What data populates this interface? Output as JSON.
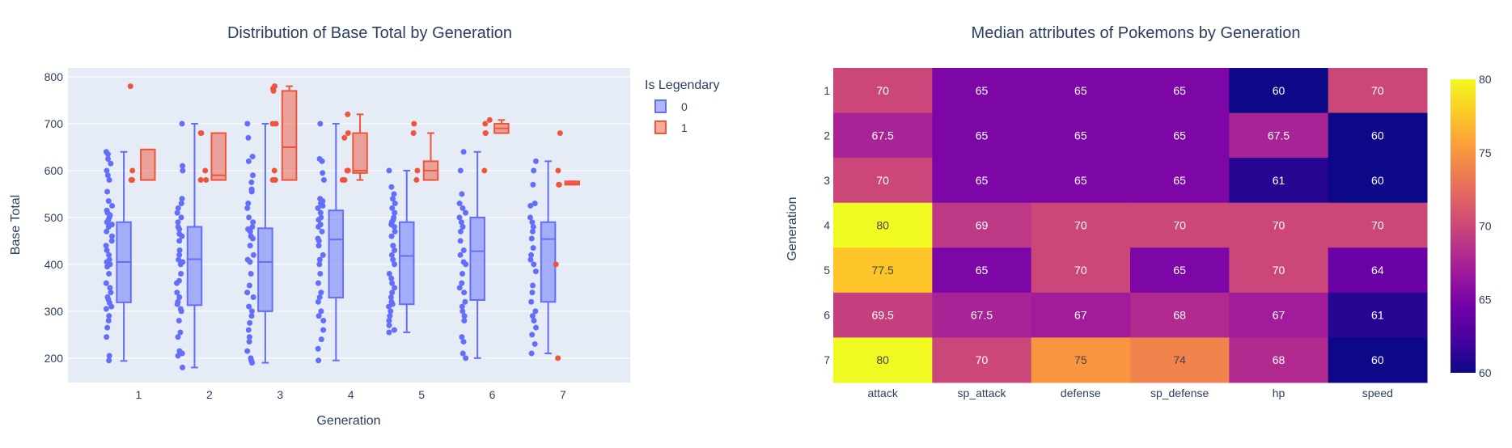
{
  "chart_data": [
    {
      "type": "box",
      "title": "Distribution of Base Total by Generation",
      "xlabel": "Generation",
      "ylabel": "Base Total",
      "categories": [
        "1",
        "2",
        "3",
        "4",
        "5",
        "6",
        "7"
      ],
      "yticks": [
        200,
        300,
        400,
        500,
        600,
        700,
        800
      ],
      "ylim": [
        148,
        819
      ],
      "grid": true,
      "legend": {
        "title": "Is Legendary",
        "placement": "right",
        "entries": [
          "0",
          "1"
        ]
      },
      "series": [
        {
          "name": "0",
          "color": "#636efa",
          "boxes": [
            {
              "min": 194,
              "q1": 319,
              "median": 405,
              "q3": 490,
              "max": 640
            },
            {
              "min": 180,
              "q1": 313,
              "median": 411,
              "q3": 480,
              "max": 700
            },
            {
              "min": 190,
              "q1": 300,
              "median": 405,
              "q3": 477,
              "max": 700
            },
            {
              "min": 195,
              "q1": 329,
              "median": 453,
              "q3": 515,
              "max": 700
            },
            {
              "min": 255,
              "q1": 315,
              "median": 418,
              "q3": 490,
              "max": 600
            },
            {
              "min": 200,
              "q1": 324,
              "median": 428,
              "q3": 500,
              "max": 640
            },
            {
              "min": 210,
              "q1": 320,
              "median": 454,
              "q3": 490,
              "max": 620
            }
          ],
          "points": [
            [
              195,
              205,
              245,
              265,
              280,
              290,
              305,
              310,
              318,
              325,
              330,
              340,
              350,
              360,
              380,
              395,
              400,
              405,
              410,
              420,
              430,
              440,
              450,
              460,
              470,
              480,
              485,
              490,
              495,
              500,
              505,
              510,
              515,
              525,
              535,
              555,
              580,
              590,
              600,
              615,
              625,
              635,
              640
            ],
            [
              180,
              205,
              210,
              215,
              245,
              255,
              280,
              300,
              305,
              315,
              320,
              330,
              340,
              360,
              365,
              380,
              400,
              405,
              410,
              420,
              430,
              450,
              460,
              465,
              475,
              480,
              490,
              500,
              510,
              520,
              530,
              540,
              600,
              610,
              700
            ],
            [
              190,
              195,
              200,
              215,
              235,
              245,
              260,
              275,
              290,
              300,
              310,
              330,
              340,
              355,
              380,
              405,
              410,
              420,
              440,
              455,
              460,
              470,
              475,
              480,
              490,
              500,
              520,
              530,
              555,
              560,
              575,
              590,
              620,
              630,
              670,
              700
            ],
            [
              195,
              220,
              240,
              260,
              280,
              290,
              300,
              320,
              330,
              340,
              360,
              380,
              400,
              410,
              420,
              440,
              450,
              455,
              470,
              480,
              485,
              495,
              500,
              510,
              520,
              525,
              530,
              535,
              540,
              580,
              595,
              620,
              625,
              700
            ],
            [
              255,
              260,
              270,
              280,
              290,
              300,
              310,
              315,
              320,
              330,
              340,
              350,
              360,
              370,
              380,
              400,
              410,
              420,
              430,
              440,
              460,
              470,
              480,
              485,
              490,
              495,
              500,
              510,
              520,
              530,
              540,
              550,
              565,
              600
            ],
            [
              200,
              210,
              235,
              245,
              280,
              290,
              300,
              310,
              320,
              340,
              350,
              360,
              380,
              400,
              405,
              420,
              430,
              450,
              470,
              480,
              490,
              500,
              510,
              520,
              530,
              550,
              600,
              640
            ],
            [
              210,
              230,
              250,
              265,
              280,
              290,
              300,
              320,
              340,
              355,
              385,
              400,
              410,
              420,
              435,
              455,
              470,
              480,
              490,
              500,
              525,
              530,
              570,
              600,
              620
            ]
          ]
        },
        {
          "name": "1",
          "color": "#ef553b",
          "boxes": [
            {
              "min": 580,
              "q1": 580,
              "median": 580,
              "q3": 645,
              "max": 645
            },
            {
              "min": 580,
              "q1": 580,
              "median": 590,
              "q3": 680,
              "max": 680
            },
            {
              "min": 580,
              "q1": 580,
              "median": 650,
              "q3": 770,
              "max": 780
            },
            {
              "min": 580,
              "q1": 595,
              "median": 600,
              "q3": 680,
              "max": 720
            },
            {
              "min": 580,
              "q1": 580,
              "median": 600,
              "q3": 620,
              "max": 680
            },
            {
              "min": 680,
              "q1": 680,
              "median": 690,
              "q3": 700,
              "max": 708
            },
            {
              "min": 570,
              "q1": 570,
              "median": 573,
              "q3": 577,
              "max": 577
            }
          ],
          "points": [
            [
              780,
              600,
              580,
              580
            ],
            [
              680,
              680,
              600,
              580,
              580
            ],
            [
              780,
              775,
              770,
              700,
              700,
              600,
              580,
              580
            ],
            [
              720,
              680,
              670,
              600,
              600,
              580,
              580
            ],
            [
              700,
              680,
              600,
              580
            ],
            [
              708,
              700,
              680,
              680,
              600
            ],
            [
              680,
              600,
              570,
              570,
              400,
              200
            ]
          ]
        }
      ]
    },
    {
      "type": "heatmap",
      "title": "Median attributes of Pokemons by Generation",
      "ylabel": "Generation",
      "xlabel": "",
      "x": [
        "attack",
        "sp_attack",
        "defense",
        "sp_defense",
        "hp",
        "speed"
      ],
      "y": [
        "1",
        "2",
        "3",
        "4",
        "5",
        "6",
        "7"
      ],
      "z": [
        [
          70,
          65,
          65,
          65,
          60,
          70
        ],
        [
          67.5,
          65,
          65,
          65,
          67.5,
          60
        ],
        [
          70,
          65,
          65,
          65,
          61,
          60
        ],
        [
          80,
          69,
          70,
          70,
          70,
          70
        ],
        [
          77.5,
          65,
          70,
          65,
          70,
          64
        ],
        [
          69.5,
          67.5,
          67,
          68,
          67,
          61
        ],
        [
          80,
          70,
          75,
          74,
          68,
          60
        ]
      ],
      "colorscale": "plasma",
      "zlim": [
        60,
        80
      ],
      "colorbar_ticks": [
        "60",
        "65",
        "70",
        "75",
        "80"
      ]
    }
  ]
}
